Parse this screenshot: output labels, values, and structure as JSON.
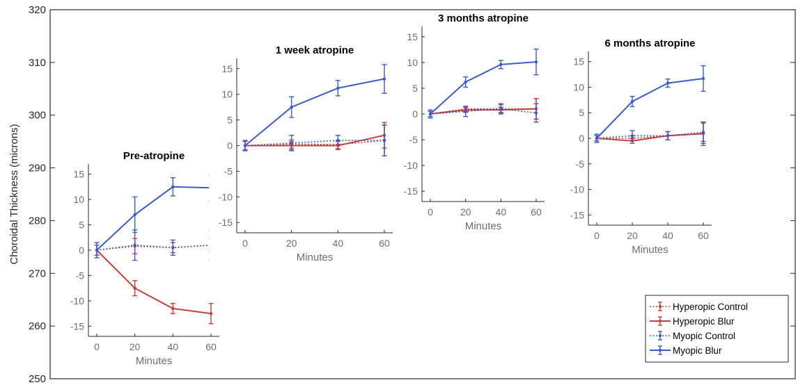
{
  "chart_data": {
    "type": "line",
    "ylabel": "Choroidal Thickness (microns)",
    "main_axis": {
      "ylim": [
        250,
        320
      ],
      "ticks": [
        {
          "value": 250,
          "label": "250"
        },
        {
          "value": 260,
          "label": "260"
        },
        {
          "value": 270,
          "label": "270"
        },
        {
          "value": 280,
          "label": "280"
        },
        {
          "value": 290,
          "label": "290"
        },
        {
          "value": 300,
          "label": "300"
        },
        {
          "value": 310,
          "label": "310"
        },
        {
          "value": 320,
          "label": "320"
        }
      ]
    },
    "series_styles": [
      {
        "name": "Hyperopic Control",
        "color": "#c83c3c",
        "dashed": true
      },
      {
        "name": "Hyperopic Blur",
        "color": "#c83c3c",
        "dashed": false
      },
      {
        "name": "Myopic Control",
        "color": "#3c5ac8",
        "dashed": true
      },
      {
        "name": "Myopic Blur",
        "color": "#3c5ac8",
        "dashed": false
      }
    ],
    "legend": {
      "position": "bottom-right",
      "entries": [
        "Hyperopic Control",
        "Hyperopic Blur",
        "Myopic Control",
        "Myopic Blur"
      ]
    },
    "panels": [
      {
        "title": "Pre-atropine",
        "xlabel": "Minutes",
        "x": [
          0,
          20,
          40,
          60
        ],
        "xtick_labels": [
          "0",
          "20",
          "40",
          "60"
        ],
        "ylim": [
          -17,
          17
        ],
        "yticks": [
          -15,
          -10,
          -5,
          0,
          5,
          10,
          15
        ],
        "ytick_labels": [
          "-15",
          "-10",
          "-5",
          "0",
          "5",
          "10",
          "15"
        ],
        "series": [
          {
            "name": "Hyperopic Control",
            "values": [
              0,
              0.8,
              0.5,
              1.0
            ],
            "errors": [
              1.0,
              1.5,
              1.0,
              1.3
            ]
          },
          {
            "name": "Hyperopic Blur",
            "values": [
              0,
              -7.5,
              -11.5,
              -12.5
            ],
            "errors": [
              0,
              1.5,
              1.0,
              2.0
            ]
          },
          {
            "name": "Myopic Control",
            "values": [
              0,
              1.0,
              0.5,
              1.0
            ],
            "errors": [
              1.5,
              3.0,
              1.5,
              3.0
            ]
          },
          {
            "name": "Myopic Blur",
            "values": [
              0,
              7.0,
              12.5,
              12.3
            ],
            "errors": [
              1.0,
              3.5,
              1.8,
              2.5
            ]
          }
        ]
      },
      {
        "title": "1 week atropine",
        "xlabel": "Minutes",
        "x": [
          0,
          20,
          40,
          60
        ],
        "xtick_labels": [
          "0",
          "20",
          "40",
          "60"
        ],
        "ylim": [
          -17,
          17
        ],
        "yticks": [
          -15,
          -10,
          -5,
          0,
          5,
          10,
          15
        ],
        "ytick_labels": [
          "-15",
          "-10",
          "-5",
          "0",
          "5",
          "10",
          "15"
        ],
        "series": [
          {
            "name": "Hyperopic Control",
            "values": [
              0,
              0.3,
              0.2,
              1.0
            ],
            "errors": [
              0.8,
              0.8,
              0.8,
              3.0
            ]
          },
          {
            "name": "Hyperopic Blur",
            "values": [
              0,
              0,
              0,
              2.0
            ],
            "errors": [
              0,
              0.8,
              0.8,
              2.5
            ]
          },
          {
            "name": "Myopic Control",
            "values": [
              0,
              0.5,
              1.0,
              1.0
            ],
            "errors": [
              1.0,
              1.5,
              1.0,
              3.0
            ]
          },
          {
            "name": "Myopic Blur",
            "values": [
              0,
              7.5,
              11.2,
              13.0
            ],
            "errors": [
              1.0,
              2.0,
              1.5,
              2.8
            ]
          }
        ]
      },
      {
        "title": "3 months atropine",
        "xlabel": "Minutes",
        "x": [
          0,
          20,
          40,
          60
        ],
        "xtick_labels": [
          "0",
          "20",
          "40",
          "60"
        ],
        "ylim": [
          -17,
          17
        ],
        "yticks": [
          -15,
          -10,
          -5,
          0,
          5,
          10,
          15
        ],
        "ytick_labels": [
          "-15",
          "-10",
          "-5",
          "0",
          "5",
          "10",
          "15"
        ],
        "series": [
          {
            "name": "Hyperopic Control",
            "values": [
              0,
              1.0,
              1.0,
              1.0
            ],
            "errors": [
              0.5,
              0.5,
              0.8,
              2.0
            ]
          },
          {
            "name": "Hyperopic Blur",
            "values": [
              0,
              0.8,
              0.8,
              1.0
            ],
            "errors": [
              0,
              0.5,
              0.5,
              2.0
            ]
          },
          {
            "name": "Myopic Control",
            "values": [
              0,
              0.5,
              1.0,
              0.2
            ],
            "errors": [
              0.8,
              1.0,
              1.0,
              1.8
            ]
          },
          {
            "name": "Myopic Blur",
            "values": [
              0,
              6.2,
              9.6,
              10.1
            ],
            "errors": [
              0.5,
              1.0,
              0.8,
              2.5
            ]
          }
        ]
      },
      {
        "title": "6 months atropine",
        "xlabel": "Minutes",
        "x": [
          0,
          20,
          40,
          60
        ],
        "xtick_labels": [
          "0",
          "20",
          "40",
          "60"
        ],
        "ylim": [
          -17,
          17
        ],
        "yticks": [
          -15,
          -10,
          -5,
          0,
          5,
          10,
          15
        ],
        "ytick_labels": [
          "-15",
          "-10",
          "-5",
          "0",
          "5",
          "10",
          "15"
        ],
        "series": [
          {
            "name": "Hyperopic Control",
            "values": [
              0,
              0,
              0.5,
              1.2
            ],
            "errors": [
              0.5,
              0.5,
              0.8,
              1.8
            ]
          },
          {
            "name": "Hyperopic Blur",
            "values": [
              0,
              -0.5,
              0.5,
              0.9
            ],
            "errors": [
              0,
              0.5,
              0.8,
              2.3
            ]
          },
          {
            "name": "Myopic Control",
            "values": [
              0,
              0.5,
              0.5,
              1.0
            ],
            "errors": [
              0.8,
              1.0,
              0.8,
              2.0
            ]
          },
          {
            "name": "Myopic Blur",
            "values": [
              0,
              7.2,
              10.8,
              11.7
            ],
            "errors": [
              0.5,
              1.0,
              0.8,
              2.5
            ]
          }
        ]
      }
    ]
  }
}
